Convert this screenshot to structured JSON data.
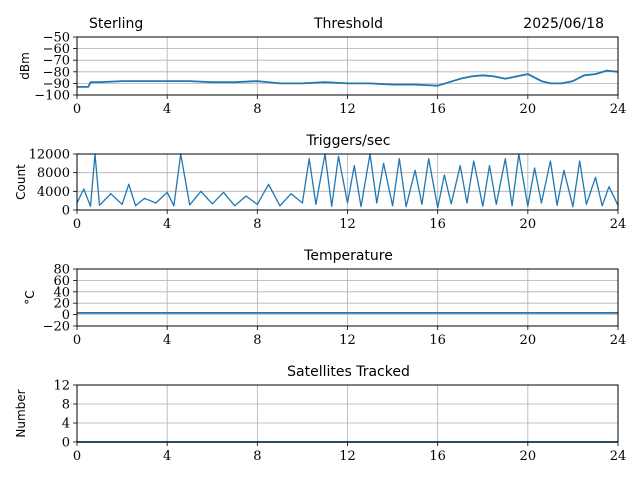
{
  "header": {
    "left": "Sterling",
    "right": "2025/06/18"
  },
  "colors": {
    "series": "#1f77b4",
    "grid": "#b0b0b0",
    "axis": "#000000"
  },
  "chart_data": [
    {
      "type": "line",
      "title": "Threshold",
      "ylabel": "dBm",
      "xlabel": "",
      "xlim": [
        0,
        24
      ],
      "ylim": [
        -100,
        -50
      ],
      "xticks": [
        0,
        4,
        8,
        12,
        16,
        20,
        24
      ],
      "yticks": [
        -100,
        -90,
        -80,
        -70,
        -60,
        -50
      ],
      "grid": true,
      "series": [
        {
          "x": [
            0,
            0.5,
            0.6,
            1,
            2,
            3,
            4,
            5,
            6,
            7,
            8,
            9,
            10,
            11,
            12,
            13,
            14,
            15,
            16,
            17,
            17.5,
            18,
            18.5,
            19,
            19.5,
            20,
            20.3,
            20.6,
            21,
            21.5,
            22,
            22.5,
            23,
            23.5,
            24
          ],
          "y": [
            -93,
            -93,
            -89,
            -89,
            -88,
            -88,
            -88,
            -88,
            -89,
            -89,
            -88,
            -90,
            -90,
            -89,
            -90,
            -90,
            -91,
            -91,
            -92,
            -86,
            -84,
            -83,
            -84,
            -86,
            -84,
            -82,
            -85,
            -88,
            -90,
            -90,
            -88,
            -83,
            -82,
            -79,
            -80
          ]
        }
      ]
    },
    {
      "type": "line",
      "title": "Triggers/sec",
      "ylabel": "Count",
      "xlabel": "",
      "xlim": [
        0,
        24
      ],
      "ylim": [
        0,
        12000
      ],
      "xticks": [
        0,
        4,
        8,
        12,
        16,
        20,
        24
      ],
      "yticks": [
        0,
        4000,
        8000,
        12000
      ],
      "grid": true,
      "series": [
        {
          "x": [
            0,
            0.3,
            0.6,
            0.8,
            1,
            1.5,
            2,
            2.3,
            2.6,
            3,
            3.5,
            4,
            4.3,
            4.6,
            5,
            5.5,
            6,
            6.5,
            7,
            7.5,
            8,
            8.5,
            9,
            9.5,
            10,
            10.3,
            10.6,
            11,
            11.3,
            11.6,
            12,
            12.3,
            12.6,
            13,
            13.3,
            13.6,
            14,
            14.3,
            14.6,
            15,
            15.3,
            15.6,
            16,
            16.3,
            16.6,
            17,
            17.3,
            17.6,
            18,
            18.3,
            18.6,
            19,
            19.3,
            19.6,
            20,
            20.3,
            20.6,
            21,
            21.3,
            21.6,
            22,
            22.3,
            22.6,
            23,
            23.3,
            23.6,
            24
          ],
          "y": [
            1500,
            4500,
            800,
            12000,
            1000,
            3500,
            1200,
            5500,
            900,
            2500,
            1500,
            3800,
            900,
            12000,
            1100,
            4000,
            1300,
            3800,
            900,
            3000,
            1200,
            5500,
            900,
            3500,
            1500,
            11000,
            1200,
            12000,
            800,
            11500,
            1500,
            9500,
            700,
            12000,
            1500,
            10000,
            900,
            11000,
            700,
            8500,
            1200,
            11000,
            500,
            7500,
            1300,
            9500,
            1500,
            10500,
            800,
            9500,
            1200,
            11000,
            900,
            12000,
            800,
            9000,
            1500,
            10500,
            1000,
            8500,
            700,
            10500,
            1200,
            7000,
            900,
            5000,
            1000
          ]
        }
      ]
    },
    {
      "type": "line",
      "title": "Temperature",
      "ylabel": "°C",
      "xlabel": "",
      "xlim": [
        0,
        24
      ],
      "ylim": [
        -20,
        80
      ],
      "xticks": [
        0,
        4,
        8,
        12,
        16,
        20,
        24
      ],
      "yticks": [
        -20,
        0,
        20,
        40,
        60,
        80
      ],
      "grid": true,
      "series": [
        {
          "x": [
            0,
            24
          ],
          "y": [
            3,
            3
          ]
        }
      ]
    },
    {
      "type": "line",
      "title": "Satellites Tracked",
      "ylabel": "Number",
      "xlabel": "",
      "xlim": [
        0,
        24
      ],
      "ylim": [
        0,
        12
      ],
      "xticks": [
        0,
        4,
        8,
        12,
        16,
        20,
        24
      ],
      "yticks": [
        0,
        4,
        8,
        12
      ],
      "grid": true,
      "series": [
        {
          "x": [
            0,
            24
          ],
          "y": [
            0,
            0
          ]
        }
      ]
    }
  ]
}
